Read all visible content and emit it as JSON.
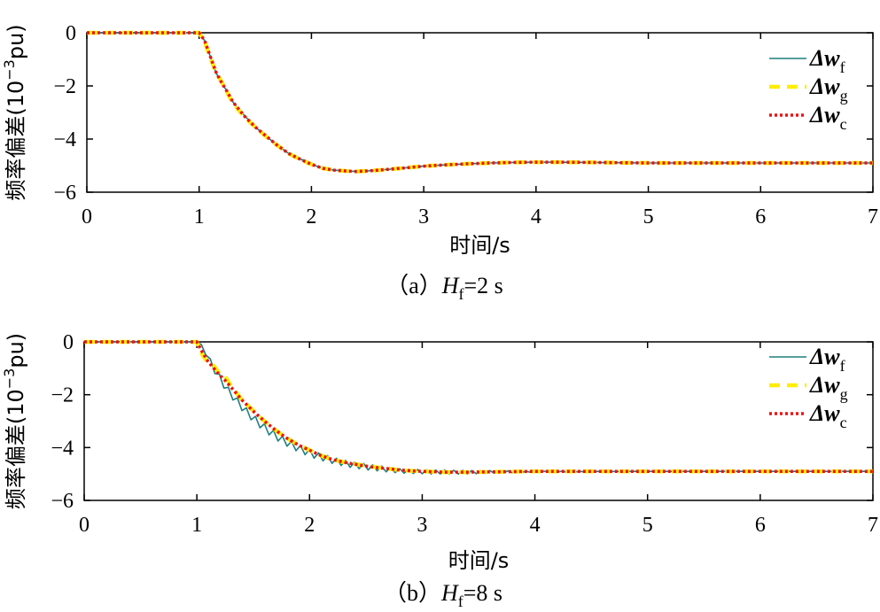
{
  "chart_data": [
    {
      "type": "line",
      "caption": {
        "prefix": "（a）",
        "var": "H",
        "sub": "f",
        "suffix": "=2 s"
      },
      "xlabel": "时间/s",
      "ylabel": {
        "main": "频率偏差(10",
        "exp": "−3",
        "unit": "pu)"
      },
      "xlim": [
        0,
        7
      ],
      "ylim": [
        -6,
        0
      ],
      "xticks": [
        "0",
        "1",
        "2",
        "3",
        "4",
        "5",
        "6",
        "7"
      ],
      "yticks": [
        "0",
        "−2",
        "−4",
        "−6"
      ],
      "legend_position": "right",
      "series": [
        {
          "name": "Δw",
          "sub": "f",
          "color": "#1f7f7f",
          "style": "solid",
          "x": [
            0,
            1.0,
            1.05,
            1.1,
            1.15,
            1.2,
            1.25,
            1.3,
            1.4,
            1.5,
            1.6,
            1.7,
            1.8,
            1.9,
            2.0,
            2.1,
            2.2,
            2.3,
            2.4,
            2.5,
            2.6,
            2.8,
            3.0,
            3.2,
            3.4,
            3.6,
            3.8,
            4.0,
            4.2,
            4.5,
            5.0,
            5.5,
            6.0,
            6.5,
            7.0
          ],
          "y": [
            0,
            0,
            -0.3,
            -0.9,
            -1.5,
            -1.9,
            -2.2,
            -2.6,
            -3.1,
            -3.55,
            -3.9,
            -4.25,
            -4.55,
            -4.75,
            -4.95,
            -5.1,
            -5.17,
            -5.2,
            -5.22,
            -5.2,
            -5.17,
            -5.1,
            -5.02,
            -4.97,
            -4.93,
            -4.9,
            -4.88,
            -4.87,
            -4.87,
            -4.88,
            -4.9,
            -4.9,
            -4.9,
            -4.9,
            -4.9
          ]
        },
        {
          "name": "Δw",
          "sub": "g",
          "color": "#ffee00",
          "style": "dashed",
          "x": [
            0,
            1.0,
            1.05,
            1.1,
            1.15,
            1.2,
            1.25,
            1.3,
            1.4,
            1.5,
            1.6,
            1.7,
            1.8,
            1.9,
            2.0,
            2.1,
            2.2,
            2.3,
            2.4,
            2.5,
            2.6,
            2.8,
            3.0,
            3.2,
            3.4,
            3.6,
            3.8,
            4.0,
            4.2,
            4.5,
            5.0,
            5.5,
            6.0,
            6.5,
            7.0
          ],
          "y": [
            0,
            0,
            -0.35,
            -0.95,
            -1.5,
            -1.85,
            -2.25,
            -2.65,
            -3.15,
            -3.55,
            -3.92,
            -4.25,
            -4.55,
            -4.77,
            -4.95,
            -5.1,
            -5.17,
            -5.2,
            -5.22,
            -5.2,
            -5.17,
            -5.1,
            -5.02,
            -4.97,
            -4.93,
            -4.9,
            -4.88,
            -4.87,
            -4.87,
            -4.88,
            -4.9,
            -4.9,
            -4.9,
            -4.9,
            -4.9
          ]
        },
        {
          "name": "Δw",
          "sub": "c",
          "color": "#ee1111",
          "style": "dotted",
          "x": [
            0,
            1.0,
            1.05,
            1.1,
            1.15,
            1.2,
            1.25,
            1.3,
            1.4,
            1.5,
            1.6,
            1.7,
            1.8,
            1.9,
            2.0,
            2.1,
            2.2,
            2.3,
            2.4,
            2.5,
            2.6,
            2.8,
            3.0,
            3.2,
            3.4,
            3.6,
            3.8,
            4.0,
            4.2,
            4.5,
            5.0,
            5.5,
            6.0,
            6.5,
            7.0
          ],
          "y": [
            0,
            0,
            -0.3,
            -0.9,
            -1.48,
            -1.88,
            -2.22,
            -2.6,
            -3.12,
            -3.55,
            -3.9,
            -4.25,
            -4.55,
            -4.76,
            -4.95,
            -5.1,
            -5.17,
            -5.2,
            -5.22,
            -5.2,
            -5.17,
            -5.1,
            -5.02,
            -4.97,
            -4.93,
            -4.9,
            -4.88,
            -4.87,
            -4.87,
            -4.88,
            -4.9,
            -4.9,
            -4.9,
            -4.9,
            -4.9
          ]
        }
      ]
    },
    {
      "type": "line",
      "caption": {
        "prefix": "（b）",
        "var": "H",
        "sub": "f",
        "suffix": "=8 s"
      },
      "xlabel": "时间/s",
      "ylabel": {
        "main": "频率偏差(10",
        "exp": "−3",
        "unit": "pu)"
      },
      "xlim": [
        0,
        7
      ],
      "ylim": [
        -6,
        0
      ],
      "xticks": [
        "0",
        "1",
        "2",
        "3",
        "4",
        "5",
        "6",
        "7"
      ],
      "yticks": [
        "0",
        "−2",
        "−4",
        "−6"
      ],
      "legend_position": "right",
      "series": [
        {
          "name": "Δw",
          "sub": "f",
          "color": "#1f7f7f",
          "style": "solid",
          "x": [
            0,
            1.0,
            1.04,
            1.08,
            1.12,
            1.16,
            1.2,
            1.24,
            1.28,
            1.32,
            1.36,
            1.4,
            1.44,
            1.48,
            1.52,
            1.56,
            1.6,
            1.64,
            1.68,
            1.72,
            1.76,
            1.8,
            1.84,
            1.88,
            1.92,
            1.96,
            2.0,
            2.04,
            2.08,
            2.12,
            2.16,
            2.2,
            2.24,
            2.28,
            2.32,
            2.36,
            2.4,
            2.44,
            2.48,
            2.52,
            2.56,
            2.6,
            2.64,
            2.68,
            2.72,
            2.76,
            2.8,
            2.84,
            2.88,
            2.92,
            2.96,
            3.0,
            3.04,
            3.08,
            3.12,
            3.16,
            3.2,
            3.24,
            3.28,
            3.32,
            3.36,
            3.4,
            3.44,
            3.48,
            3.52,
            3.56,
            3.6,
            3.64,
            3.68,
            3.72,
            3.76,
            3.8,
            3.84,
            3.88,
            3.92,
            3.96,
            4.0,
            4.04,
            4.08,
            4.12,
            4.16,
            4.2,
            4.24,
            4.28,
            4.32,
            4.36,
            4.4,
            4.44,
            4.48,
            4.52,
            4.56,
            4.6,
            4.64,
            4.68,
            4.72,
            4.76,
            4.8,
            5.0,
            5.5,
            6.0,
            6.5,
            7.0
          ],
          "y": [
            0,
            0,
            -0.1,
            -0.5,
            -0.65,
            -1.2,
            -1.22,
            -1.75,
            -1.72,
            -2.2,
            -2.12,
            -2.6,
            -2.5,
            -2.95,
            -2.82,
            -3.25,
            -3.1,
            -3.52,
            -3.35,
            -3.75,
            -3.57,
            -3.95,
            -3.76,
            -4.12,
            -3.92,
            -4.27,
            -4.07,
            -4.4,
            -4.2,
            -4.5,
            -4.3,
            -4.6,
            -4.4,
            -4.68,
            -4.48,
            -4.75,
            -4.55,
            -4.8,
            -4.6,
            -4.85,
            -4.65,
            -4.88,
            -4.7,
            -4.92,
            -4.75,
            -4.95,
            -4.8,
            -4.97,
            -4.82,
            -4.98,
            -4.83,
            -4.99,
            -4.84,
            -5.0,
            -4.85,
            -5.0,
            -4.85,
            -5.0,
            -4.86,
            -5.0,
            -4.86,
            -5.0,
            -4.87,
            -4.99,
            -4.87,
            -4.98,
            -4.87,
            -4.97,
            -4.88,
            -4.96,
            -4.88,
            -4.95,
            -4.88,
            -4.95,
            -4.89,
            -4.94,
            -4.89,
            -4.94,
            -4.89,
            -4.93,
            -4.89,
            -4.93,
            -4.89,
            -4.93,
            -4.89,
            -4.92,
            -4.9,
            -4.92,
            -4.9,
            -4.92,
            -4.9,
            -4.91,
            -4.9,
            -4.91,
            -4.9,
            -4.91,
            -4.9,
            -4.9,
            -4.9,
            -4.9,
            -4.9,
            -4.9
          ]
        },
        {
          "name": "Δw",
          "sub": "g",
          "color": "#ffee00",
          "style": "dashed",
          "x": [
            0,
            1.0,
            1.05,
            1.1,
            1.15,
            1.2,
            1.25,
            1.3,
            1.4,
            1.5,
            1.6,
            1.7,
            1.8,
            1.9,
            2.0,
            2.1,
            2.2,
            2.3,
            2.4,
            2.5,
            2.6,
            2.7,
            2.8,
            2.9,
            3.0,
            3.2,
            3.4,
            3.6,
            3.8,
            4.0,
            4.5,
            5.0,
            5.5,
            6.0,
            6.5,
            7.0
          ],
          "y": [
            0,
            0,
            -0.5,
            -0.8,
            -0.9,
            -1.2,
            -1.3,
            -1.65,
            -2.2,
            -2.6,
            -3.0,
            -3.35,
            -3.65,
            -3.9,
            -4.1,
            -4.3,
            -4.45,
            -4.55,
            -4.62,
            -4.7,
            -4.75,
            -4.8,
            -4.85,
            -4.88,
            -4.9,
            -4.93,
            -4.93,
            -4.92,
            -4.91,
            -4.9,
            -4.9,
            -4.9,
            -4.9,
            -4.9,
            -4.9,
            -4.9
          ]
        },
        {
          "name": "Δw",
          "sub": "c",
          "color": "#ee1111",
          "style": "dotted",
          "x": [
            0,
            1.0,
            1.05,
            1.1,
            1.15,
            1.2,
            1.25,
            1.3,
            1.4,
            1.5,
            1.6,
            1.7,
            1.8,
            1.9,
            2.0,
            2.1,
            2.2,
            2.3,
            2.4,
            2.5,
            2.6,
            2.7,
            2.8,
            2.9,
            3.0,
            3.2,
            3.4,
            3.6,
            3.8,
            4.0,
            4.5,
            5.0,
            5.5,
            6.0,
            6.5,
            7.0
          ],
          "y": [
            0,
            0,
            -0.4,
            -0.75,
            -1.0,
            -1.25,
            -1.45,
            -1.7,
            -2.2,
            -2.62,
            -3.0,
            -3.35,
            -3.65,
            -3.9,
            -4.1,
            -4.3,
            -4.45,
            -4.55,
            -4.63,
            -4.7,
            -4.76,
            -4.8,
            -4.85,
            -4.88,
            -4.9,
            -4.93,
            -4.93,
            -4.92,
            -4.91,
            -4.9,
            -4.9,
            -4.9,
            -4.9,
            -4.9,
            -4.9,
            -4.9
          ]
        }
      ]
    }
  ]
}
